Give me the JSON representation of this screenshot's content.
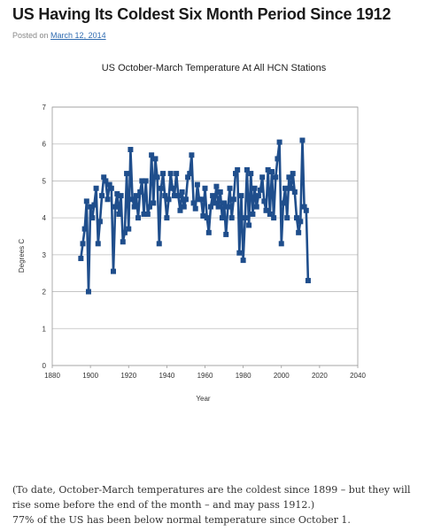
{
  "post": {
    "title": "US Having Its Coldest Six Month Period Since 1912",
    "posted_prefix": "Posted on",
    "date": "March 12, 2014"
  },
  "chart_data": {
    "type": "line",
    "title": "US October-March Temperature At All HCN Stations",
    "xlabel": "Year",
    "ylabel": "Degrees C",
    "xlim": [
      1880,
      2040
    ],
    "ylim": [
      0,
      7
    ],
    "xticks": [
      1880,
      1900,
      1920,
      1940,
      1960,
      1980,
      2000,
      2020,
      2040
    ],
    "yticks": [
      0,
      1,
      2,
      3,
      4,
      5,
      6,
      7
    ],
    "grid": true,
    "legend": "none",
    "color": "#1f4e8c",
    "series": [
      {
        "x": [
          1895,
          1896,
          1897,
          1898,
          1899,
          1900,
          1901,
          1902,
          1903,
          1904,
          1905,
          1906,
          1907,
          1908,
          1909,
          1910,
          1911,
          1912,
          1913,
          1914,
          1915,
          1916,
          1917,
          1918,
          1919,
          1920,
          1921,
          1922,
          1923,
          1924,
          1925,
          1926,
          1927,
          1928,
          1929,
          1930,
          1931,
          1932,
          1933,
          1934,
          1935,
          1936,
          1937,
          1938,
          1939,
          1940,
          1941,
          1942,
          1943,
          1944,
          1945,
          1946,
          1947,
          1948,
          1949,
          1950,
          1951,
          1952,
          1953,
          1954,
          1955,
          1956,
          1957,
          1958,
          1959,
          1960,
          1961,
          1962,
          1963,
          1964,
          1965,
          1966,
          1967,
          1968,
          1969,
          1970,
          1971,
          1972,
          1973,
          1974,
          1975,
          1976,
          1977,
          1978,
          1979,
          1980,
          1981,
          1982,
          1983,
          1984,
          1985,
          1986,
          1987,
          1988,
          1989,
          1990,
          1991,
          1992,
          1993,
          1994,
          1995,
          1996,
          1997,
          1998,
          1999,
          2000,
          2001,
          2002,
          2003,
          2004,
          2005,
          2006,
          2007,
          2008,
          2009,
          2010,
          2011,
          2012,
          2013,
          2014
        ],
        "y": [
          2.9,
          3.3,
          3.7,
          4.45,
          2.0,
          4.3,
          4.0,
          4.35,
          4.8,
          3.3,
          3.9,
          4.6,
          5.1,
          5.0,
          4.5,
          4.9,
          4.8,
          2.55,
          4.3,
          4.65,
          4.1,
          4.6,
          3.35,
          3.6,
          5.2,
          3.7,
          5.85,
          4.5,
          4.3,
          4.6,
          4.0,
          4.7,
          5.0,
          4.1,
          5.0,
          4.1,
          4.3,
          5.7,
          4.4,
          5.6,
          5.1,
          3.3,
          4.8,
          5.2,
          4.6,
          4.0,
          4.5,
          5.2,
          4.8,
          4.6,
          5.2,
          4.6,
          4.2,
          4.7,
          4.3,
          4.5,
          5.1,
          5.2,
          5.7,
          4.4,
          4.25,
          4.9,
          4.5,
          4.5,
          4.05,
          4.8,
          4.0,
          3.6,
          4.3,
          4.6,
          4.4,
          4.85,
          4.3,
          4.7,
          4.0,
          4.4,
          3.55,
          4.3,
          4.8,
          4.0,
          4.5,
          5.2,
          5.3,
          3.05,
          4.6,
          2.85,
          4.0,
          5.3,
          3.8,
          5.2,
          4.1,
          4.8,
          4.3,
          4.6,
          4.75,
          5.1,
          4.45,
          4.2,
          5.3,
          4.1,
          5.25,
          4.0,
          5.1,
          5.6,
          6.05,
          3.3,
          4.4,
          4.8,
          4.0,
          5.1,
          4.8,
          5.2,
          4.7,
          4.0,
          3.6,
          3.9,
          6.1,
          4.3,
          4.2,
          2.3
        ]
      }
    ]
  },
  "notes": {
    "para1": "(To date, October-March temperatures are the coldest since 1899 – but they will rise some before the end of the month – and may pass 1912.)",
    "para2": "77% of the US has been below normal temperature since October 1."
  }
}
